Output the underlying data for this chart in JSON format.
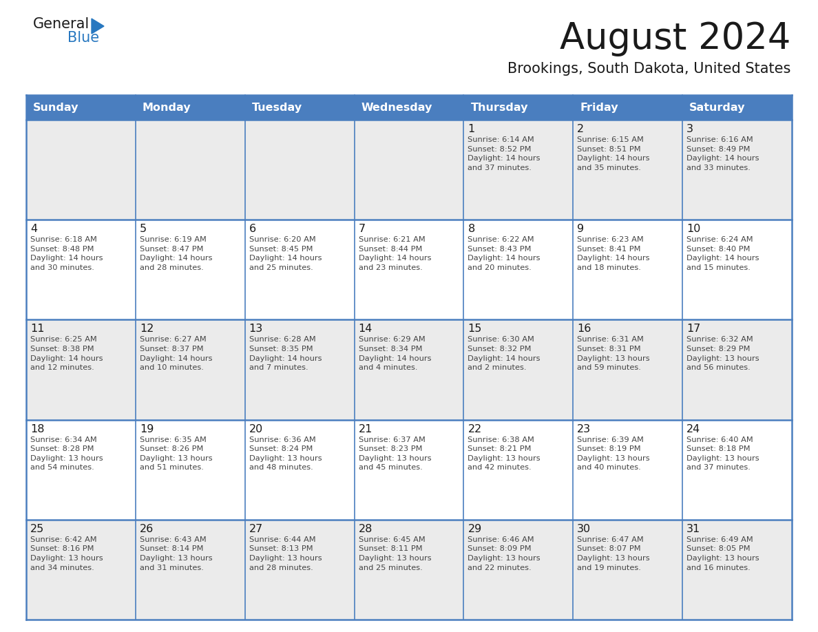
{
  "title": "August 2024",
  "subtitle": "Brookings, South Dakota, United States",
  "days_of_week": [
    "Sunday",
    "Monday",
    "Tuesday",
    "Wednesday",
    "Thursday",
    "Friday",
    "Saturday"
  ],
  "header_bg": "#4A7EBF",
  "header_text": "#FFFFFF",
  "cell_bg_light": "#EBEBEB",
  "cell_bg_white": "#FFFFFF",
  "cell_border": "#4A7EBF",
  "day_num_color": "#1a1a1a",
  "cell_text_color": "#444444",
  "logo_general_color": "#1a1a1a",
  "logo_blue_color": "#2878C0",
  "logo_triangle_color": "#2878C0",
  "weeks": [
    [
      {
        "day": "",
        "info": ""
      },
      {
        "day": "",
        "info": ""
      },
      {
        "day": "",
        "info": ""
      },
      {
        "day": "",
        "info": ""
      },
      {
        "day": "1",
        "info": "Sunrise: 6:14 AM\nSunset: 8:52 PM\nDaylight: 14 hours\nand 37 minutes."
      },
      {
        "day": "2",
        "info": "Sunrise: 6:15 AM\nSunset: 8:51 PM\nDaylight: 14 hours\nand 35 minutes."
      },
      {
        "day": "3",
        "info": "Sunrise: 6:16 AM\nSunset: 8:49 PM\nDaylight: 14 hours\nand 33 minutes."
      }
    ],
    [
      {
        "day": "4",
        "info": "Sunrise: 6:18 AM\nSunset: 8:48 PM\nDaylight: 14 hours\nand 30 minutes."
      },
      {
        "day": "5",
        "info": "Sunrise: 6:19 AM\nSunset: 8:47 PM\nDaylight: 14 hours\nand 28 minutes."
      },
      {
        "day": "6",
        "info": "Sunrise: 6:20 AM\nSunset: 8:45 PM\nDaylight: 14 hours\nand 25 minutes."
      },
      {
        "day": "7",
        "info": "Sunrise: 6:21 AM\nSunset: 8:44 PM\nDaylight: 14 hours\nand 23 minutes."
      },
      {
        "day": "8",
        "info": "Sunrise: 6:22 AM\nSunset: 8:43 PM\nDaylight: 14 hours\nand 20 minutes."
      },
      {
        "day": "9",
        "info": "Sunrise: 6:23 AM\nSunset: 8:41 PM\nDaylight: 14 hours\nand 18 minutes."
      },
      {
        "day": "10",
        "info": "Sunrise: 6:24 AM\nSunset: 8:40 PM\nDaylight: 14 hours\nand 15 minutes."
      }
    ],
    [
      {
        "day": "11",
        "info": "Sunrise: 6:25 AM\nSunset: 8:38 PM\nDaylight: 14 hours\nand 12 minutes."
      },
      {
        "day": "12",
        "info": "Sunrise: 6:27 AM\nSunset: 8:37 PM\nDaylight: 14 hours\nand 10 minutes."
      },
      {
        "day": "13",
        "info": "Sunrise: 6:28 AM\nSunset: 8:35 PM\nDaylight: 14 hours\nand 7 minutes."
      },
      {
        "day": "14",
        "info": "Sunrise: 6:29 AM\nSunset: 8:34 PM\nDaylight: 14 hours\nand 4 minutes."
      },
      {
        "day": "15",
        "info": "Sunrise: 6:30 AM\nSunset: 8:32 PM\nDaylight: 14 hours\nand 2 minutes."
      },
      {
        "day": "16",
        "info": "Sunrise: 6:31 AM\nSunset: 8:31 PM\nDaylight: 13 hours\nand 59 minutes."
      },
      {
        "day": "17",
        "info": "Sunrise: 6:32 AM\nSunset: 8:29 PM\nDaylight: 13 hours\nand 56 minutes."
      }
    ],
    [
      {
        "day": "18",
        "info": "Sunrise: 6:34 AM\nSunset: 8:28 PM\nDaylight: 13 hours\nand 54 minutes."
      },
      {
        "day": "19",
        "info": "Sunrise: 6:35 AM\nSunset: 8:26 PM\nDaylight: 13 hours\nand 51 minutes."
      },
      {
        "day": "20",
        "info": "Sunrise: 6:36 AM\nSunset: 8:24 PM\nDaylight: 13 hours\nand 48 minutes."
      },
      {
        "day": "21",
        "info": "Sunrise: 6:37 AM\nSunset: 8:23 PM\nDaylight: 13 hours\nand 45 minutes."
      },
      {
        "day": "22",
        "info": "Sunrise: 6:38 AM\nSunset: 8:21 PM\nDaylight: 13 hours\nand 42 minutes."
      },
      {
        "day": "23",
        "info": "Sunrise: 6:39 AM\nSunset: 8:19 PM\nDaylight: 13 hours\nand 40 minutes."
      },
      {
        "day": "24",
        "info": "Sunrise: 6:40 AM\nSunset: 8:18 PM\nDaylight: 13 hours\nand 37 minutes."
      }
    ],
    [
      {
        "day": "25",
        "info": "Sunrise: 6:42 AM\nSunset: 8:16 PM\nDaylight: 13 hours\nand 34 minutes."
      },
      {
        "day": "26",
        "info": "Sunrise: 6:43 AM\nSunset: 8:14 PM\nDaylight: 13 hours\nand 31 minutes."
      },
      {
        "day": "27",
        "info": "Sunrise: 6:44 AM\nSunset: 8:13 PM\nDaylight: 13 hours\nand 28 minutes."
      },
      {
        "day": "28",
        "info": "Sunrise: 6:45 AM\nSunset: 8:11 PM\nDaylight: 13 hours\nand 25 minutes."
      },
      {
        "day": "29",
        "info": "Sunrise: 6:46 AM\nSunset: 8:09 PM\nDaylight: 13 hours\nand 22 minutes."
      },
      {
        "day": "30",
        "info": "Sunrise: 6:47 AM\nSunset: 8:07 PM\nDaylight: 13 hours\nand 19 minutes."
      },
      {
        "day": "31",
        "info": "Sunrise: 6:49 AM\nSunset: 8:05 PM\nDaylight: 13 hours\nand 16 minutes."
      }
    ]
  ]
}
